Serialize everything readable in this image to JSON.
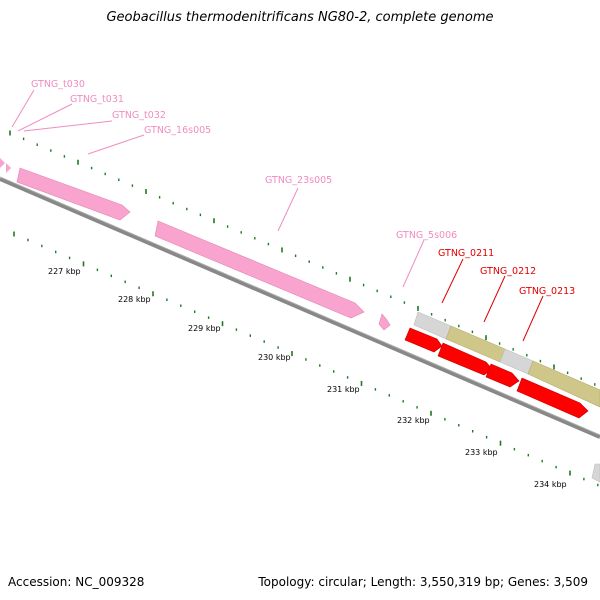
{
  "title": "Geobacillus thermodenitrificans NG80-2, complete genome",
  "footer": {
    "accession": "Accession: NC_009328",
    "summary": "Topology: circular; Length: 3,550,319 bp; Genes: 3,509"
  },
  "colors": {
    "rna": "#f9a3cf",
    "rna_dark": "#e384b6",
    "cds_red": "#ff0000",
    "cds_red_dark": "#c00000",
    "gray_feature": "#d6d6d6",
    "olive_feature": "#cfc68a",
    "ticks_green": "#1f7a1f",
    "backbone": "#888888",
    "rna_label": "#f08cc0",
    "gene_label": "#e00000"
  },
  "ruler_labels": [
    "227 kbp",
    "228 kbp",
    "229 kbp",
    "230 kbp",
    "231 kbp",
    "232 kbp",
    "233 kbp",
    "234 kbp"
  ],
  "rna_labels": [
    "GTNG_t030",
    "GTNG_t031",
    "GTNG_t032",
    "GTNG_16s005",
    "GTNG_23s005",
    "GTNG_5s006"
  ],
  "gene_labels": [
    "GTNG_0211",
    "GTNG_0212",
    "GTNG_0213"
  ]
}
